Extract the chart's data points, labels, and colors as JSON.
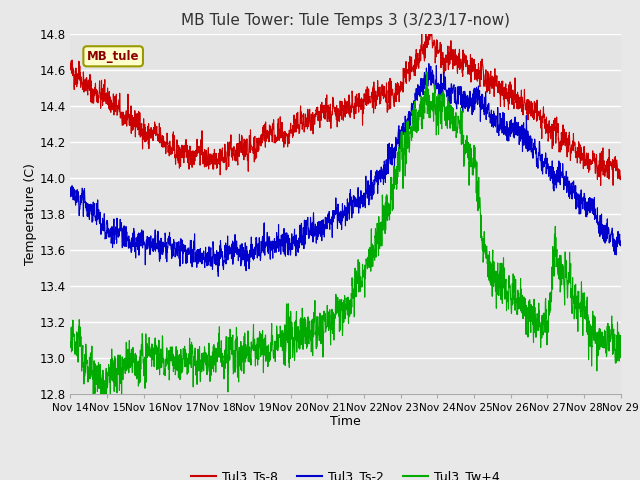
{
  "title": "MB Tule Tower: Tule Temps 3 (3/23/17-now)",
  "xlabel": "Time",
  "ylabel": "Temperature (C)",
  "ylim": [
    12.8,
    14.8
  ],
  "yticks": [
    12.8,
    13.0,
    13.2,
    13.4,
    13.6,
    13.8,
    14.0,
    14.2,
    14.4,
    14.6,
    14.8
  ],
  "x_labels": [
    "Nov 14",
    "Nov 15",
    "Nov 16",
    "Nov 17",
    "Nov 18",
    "Nov 19",
    "Nov 20",
    "Nov 21",
    "Nov 22",
    "Nov 23",
    "Nov 24",
    "Nov 25",
    "Nov 26",
    "Nov 27",
    "Nov 28",
    "Nov 29"
  ],
  "bg_color": "#e8e8e8",
  "plot_bg_color": "#e4e4e4",
  "grid_color": "#ffffff",
  "line_colors": {
    "red": "#cc0000",
    "blue": "#0000cc",
    "green": "#00aa00"
  },
  "legend_label": "MB_tule",
  "series_labels": [
    "Tul3_Ts-8",
    "Tul3_Ts-2",
    "Tul3_Tw+4"
  ],
  "title_fontsize": 11,
  "axis_fontsize": 9
}
